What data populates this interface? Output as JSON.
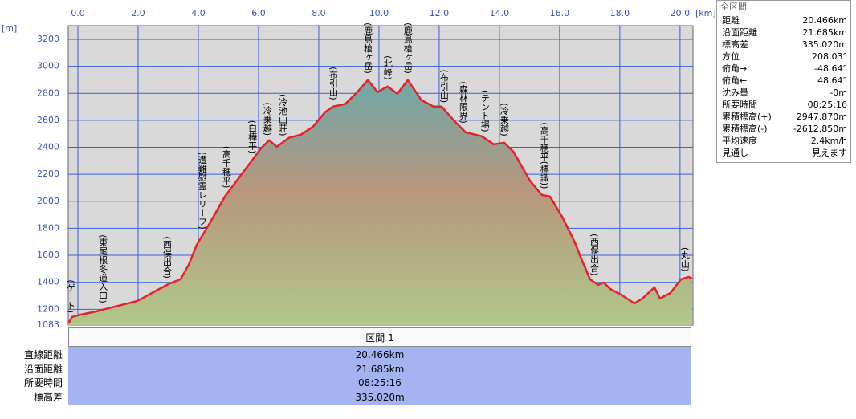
{
  "chart_data": {
    "type": "line",
    "x_unit": "[km]",
    "y_unit": "[m]",
    "xlim": [
      -0.32,
      20.43
    ],
    "ylim": [
      1083,
      3301
    ],
    "xticks": [
      {
        "value": 0,
        "label": "0.0"
      },
      {
        "value": 2,
        "label": "2.0"
      },
      {
        "value": 4,
        "label": "4.0"
      },
      {
        "value": 6,
        "label": "6.0"
      },
      {
        "value": 8,
        "label": "8.0"
      },
      {
        "value": 10,
        "label": "10.0"
      },
      {
        "value": 12,
        "label": "12.0"
      },
      {
        "value": 14,
        "label": "14.0"
      },
      {
        "value": 16,
        "label": "16.0"
      },
      {
        "value": 18,
        "label": "18.0"
      },
      {
        "value": 20,
        "label": "20.0"
      }
    ],
    "yticks": [
      1083,
      1200,
      1400,
      1600,
      1800,
      2000,
      2200,
      2400,
      2600,
      2800,
      3000,
      3200
    ],
    "grid": true,
    "series": [
      {
        "color": "#e8202a",
        "x": [
          -0.32,
          -0.19,
          0.08,
          0.61,
          0.88,
          1.41,
          1.95,
          2.21,
          2.61,
          3.01,
          3.41,
          3.68,
          3.95,
          4.35,
          4.88,
          5.28,
          5.68,
          6.08,
          6.35,
          6.61,
          7.01,
          7.41,
          7.81,
          8.21,
          8.48,
          8.88,
          9.28,
          9.63,
          9.95,
          10.29,
          10.61,
          10.96,
          11.41,
          11.81,
          12.08,
          12.48,
          12.88,
          13.41,
          13.81,
          14.16,
          14.48,
          15.01,
          15.41,
          15.68,
          16.08,
          16.48,
          16.75,
          17.01,
          17.28,
          17.47,
          17.68,
          18.08,
          18.48,
          18.75,
          19.15,
          19.33,
          19.68,
          20.03,
          20.29,
          20.4
        ],
        "values": [
          1095,
          1143,
          1160,
          1184,
          1200,
          1230,
          1260,
          1290,
          1339,
          1387,
          1423,
          1530,
          1678,
          1827,
          2035,
          2154,
          2273,
          2392,
          2452,
          2404,
          2470,
          2494,
          2553,
          2660,
          2702,
          2720,
          2809,
          2898,
          2809,
          2851,
          2797,
          2898,
          2749,
          2702,
          2702,
          2601,
          2511,
          2482,
          2422,
          2434,
          2363,
          2154,
          2047,
          2035,
          1887,
          1708,
          1559,
          1422,
          1381,
          1398,
          1351,
          1303,
          1244,
          1280,
          1363,
          1280,
          1321,
          1422,
          1440,
          1428
        ]
      }
    ],
    "annotations": [
      {
        "text": "(ゲート)",
        "x": -0.24
      },
      {
        "text": "(東尾根冬道入口)",
        "x": 0.83
      },
      {
        "text": "(西俣出合)",
        "x": 2.96
      },
      {
        "text": "(遭難慰霊レリーフ)",
        "x": 4.13
      },
      {
        "text": "(高千穂平)",
        "x": 4.93
      },
      {
        "text": "(白樺平)",
        "x": 5.79
      },
      {
        "text": "(冷乗越)",
        "x": 6.29
      },
      {
        "text": "(冷池山荘)",
        "x": 6.8
      },
      {
        "text": "(布引山)",
        "x": 8.48
      },
      {
        "text": "(鹿島槍ヶ岳)",
        "x": 9.63
      },
      {
        "text": "(北峰)",
        "x": 10.29
      },
      {
        "text": "(鹿島槍ヶ岳)",
        "x": 10.96
      },
      {
        "text": "(布引山)",
        "x": 12.16
      },
      {
        "text": "(森林限界)",
        "x": 12.8
      },
      {
        "text": "(テント場)",
        "x": 13.52
      },
      {
        "text": "(冷乗越)",
        "x": 14.16
      },
      {
        "text": "(高千穂平(標識))",
        "x": 15.49
      },
      {
        "text": "(西俣出合)",
        "x": 17.15
      },
      {
        "text": "(丸山)",
        "x": 20.16
      }
    ]
  },
  "info_panel": {
    "title": "全区間",
    "rows": [
      [
        "距離",
        "20.466km"
      ],
      [
        "沿面距離",
        "21.685km"
      ],
      [
        "標高差",
        "335.020m"
      ],
      [
        "方位",
        "208.03°"
      ],
      [
        "俯角→",
        "-48.64°"
      ],
      [
        "俯角←",
        "48.64°"
      ],
      [
        "沈み量",
        "-0m"
      ],
      [
        "所要時間",
        "08:25:16"
      ],
      [
        "累積標高(+)",
        "2947.870m"
      ],
      [
        "累積標高(-)",
        "-2612.850m"
      ],
      [
        "平均速度",
        "2.4km/h"
      ],
      [
        "見通し",
        "見えます"
      ]
    ]
  },
  "section": {
    "title": "区間 1",
    "rows": [
      [
        "直線距離",
        "20.466km"
      ],
      [
        "沿面距離",
        "21.685km"
      ],
      [
        "所要時間",
        "08:25:16"
      ],
      [
        "標高差",
        "335.020m"
      ]
    ]
  }
}
